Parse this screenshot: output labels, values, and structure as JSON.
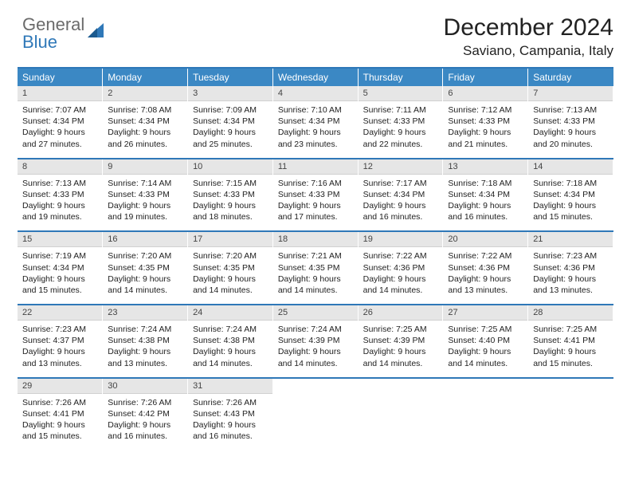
{
  "logo": {
    "top": "General",
    "bottom": "Blue"
  },
  "title": "December 2024",
  "location": "Saviano, Campania, Italy",
  "colors": {
    "header_bg": "#3b88c4",
    "header_text": "#ffffff",
    "border": "#2f78b8",
    "daynum_bg": "#e6e6e6",
    "logo_gray": "#6b6b6b",
    "logo_blue": "#2f78b8"
  },
  "day_headers": [
    "Sunday",
    "Monday",
    "Tuesday",
    "Wednesday",
    "Thursday",
    "Friday",
    "Saturday"
  ],
  "weeks": [
    [
      {
        "n": "1",
        "sunrise": "7:07 AM",
        "sunset": "4:34 PM",
        "dl": "9 hours and 27 minutes."
      },
      {
        "n": "2",
        "sunrise": "7:08 AM",
        "sunset": "4:34 PM",
        "dl": "9 hours and 26 minutes."
      },
      {
        "n": "3",
        "sunrise": "7:09 AM",
        "sunset": "4:34 PM",
        "dl": "9 hours and 25 minutes."
      },
      {
        "n": "4",
        "sunrise": "7:10 AM",
        "sunset": "4:34 PM",
        "dl": "9 hours and 23 minutes."
      },
      {
        "n": "5",
        "sunrise": "7:11 AM",
        "sunset": "4:33 PM",
        "dl": "9 hours and 22 minutes."
      },
      {
        "n": "6",
        "sunrise": "7:12 AM",
        "sunset": "4:33 PM",
        "dl": "9 hours and 21 minutes."
      },
      {
        "n": "7",
        "sunrise": "7:13 AM",
        "sunset": "4:33 PM",
        "dl": "9 hours and 20 minutes."
      }
    ],
    [
      {
        "n": "8",
        "sunrise": "7:13 AM",
        "sunset": "4:33 PM",
        "dl": "9 hours and 19 minutes."
      },
      {
        "n": "9",
        "sunrise": "7:14 AM",
        "sunset": "4:33 PM",
        "dl": "9 hours and 19 minutes."
      },
      {
        "n": "10",
        "sunrise": "7:15 AM",
        "sunset": "4:33 PM",
        "dl": "9 hours and 18 minutes."
      },
      {
        "n": "11",
        "sunrise": "7:16 AM",
        "sunset": "4:33 PM",
        "dl": "9 hours and 17 minutes."
      },
      {
        "n": "12",
        "sunrise": "7:17 AM",
        "sunset": "4:34 PM",
        "dl": "9 hours and 16 minutes."
      },
      {
        "n": "13",
        "sunrise": "7:18 AM",
        "sunset": "4:34 PM",
        "dl": "9 hours and 16 minutes."
      },
      {
        "n": "14",
        "sunrise": "7:18 AM",
        "sunset": "4:34 PM",
        "dl": "9 hours and 15 minutes."
      }
    ],
    [
      {
        "n": "15",
        "sunrise": "7:19 AM",
        "sunset": "4:34 PM",
        "dl": "9 hours and 15 minutes."
      },
      {
        "n": "16",
        "sunrise": "7:20 AM",
        "sunset": "4:35 PM",
        "dl": "9 hours and 14 minutes."
      },
      {
        "n": "17",
        "sunrise": "7:20 AM",
        "sunset": "4:35 PM",
        "dl": "9 hours and 14 minutes."
      },
      {
        "n": "18",
        "sunrise": "7:21 AM",
        "sunset": "4:35 PM",
        "dl": "9 hours and 14 minutes."
      },
      {
        "n": "19",
        "sunrise": "7:22 AM",
        "sunset": "4:36 PM",
        "dl": "9 hours and 14 minutes."
      },
      {
        "n": "20",
        "sunrise": "7:22 AM",
        "sunset": "4:36 PM",
        "dl": "9 hours and 13 minutes."
      },
      {
        "n": "21",
        "sunrise": "7:23 AM",
        "sunset": "4:36 PM",
        "dl": "9 hours and 13 minutes."
      }
    ],
    [
      {
        "n": "22",
        "sunrise": "7:23 AM",
        "sunset": "4:37 PM",
        "dl": "9 hours and 13 minutes."
      },
      {
        "n": "23",
        "sunrise": "7:24 AM",
        "sunset": "4:38 PM",
        "dl": "9 hours and 13 minutes."
      },
      {
        "n": "24",
        "sunrise": "7:24 AM",
        "sunset": "4:38 PM",
        "dl": "9 hours and 14 minutes."
      },
      {
        "n": "25",
        "sunrise": "7:24 AM",
        "sunset": "4:39 PM",
        "dl": "9 hours and 14 minutes."
      },
      {
        "n": "26",
        "sunrise": "7:25 AM",
        "sunset": "4:39 PM",
        "dl": "9 hours and 14 minutes."
      },
      {
        "n": "27",
        "sunrise": "7:25 AM",
        "sunset": "4:40 PM",
        "dl": "9 hours and 14 minutes."
      },
      {
        "n": "28",
        "sunrise": "7:25 AM",
        "sunset": "4:41 PM",
        "dl": "9 hours and 15 minutes."
      }
    ],
    [
      {
        "n": "29",
        "sunrise": "7:26 AM",
        "sunset": "4:41 PM",
        "dl": "9 hours and 15 minutes."
      },
      {
        "n": "30",
        "sunrise": "7:26 AM",
        "sunset": "4:42 PM",
        "dl": "9 hours and 16 minutes."
      },
      {
        "n": "31",
        "sunrise": "7:26 AM",
        "sunset": "4:43 PM",
        "dl": "9 hours and 16 minutes."
      },
      null,
      null,
      null,
      null
    ]
  ],
  "labels": {
    "sunrise": "Sunrise:",
    "sunset": "Sunset:",
    "daylight": "Daylight:"
  }
}
